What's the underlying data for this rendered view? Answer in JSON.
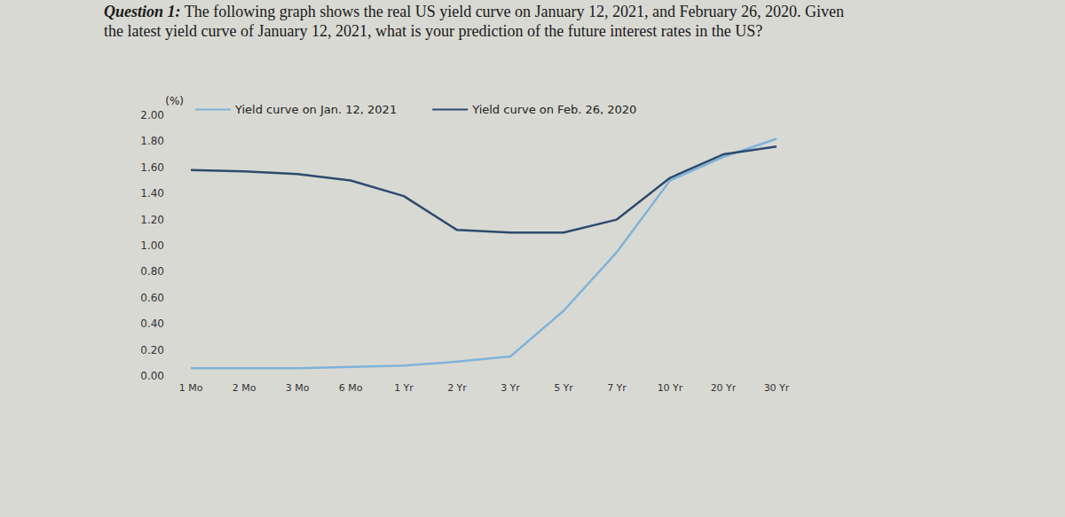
{
  "title": "Question 1: The following graph shows the real US yield curve on January 12, 2021, and February 26, 2020. Given the latest yield curve of January 12, 2021, what is your prediction of the future interest rates in the US?",
  "chart_data": {
    "type": "line",
    "y_label": "(%)",
    "categories": [
      "1 Mo",
      "2 Mo",
      "3 Mo",
      "6 Mo",
      "1 Yr",
      "2 Yr",
      "3 Yr",
      "5 Yr",
      "7 Yr",
      "10 Yr",
      "20 Yr",
      "30 Yr"
    ],
    "series": [
      {
        "name": "Yield curve on Jan. 12, 2021",
        "color": "#7fb3d9",
        "values": [
          0.06,
          0.06,
          0.06,
          0.07,
          0.08,
          0.11,
          0.15,
          0.5,
          0.95,
          1.5,
          1.68,
          1.82
        ]
      },
      {
        "name": "Yield curve on Feb. 26, 2020",
        "color": "#2e4a6e",
        "values": [
          1.58,
          1.57,
          1.55,
          1.5,
          1.38,
          1.12,
          1.1,
          1.1,
          1.2,
          1.52,
          1.7,
          1.76
        ]
      }
    ],
    "ylim": [
      0,
      2
    ],
    "yticks": [
      {
        "value": 0,
        "label": "0.00"
      },
      {
        "value": 0.2,
        "label": "0.20"
      },
      {
        "value": 0.4,
        "label": "0.40"
      },
      {
        "value": 0.6,
        "label": "0.60"
      },
      {
        "value": 0.8,
        "label": "0.80"
      },
      {
        "value": 1,
        "label": "1.00"
      },
      {
        "value": 1.2,
        "label": "1.20"
      },
      {
        "value": 1.4,
        "label": "1.40"
      },
      {
        "value": 1.6,
        "label": "1.60"
      },
      {
        "value": 1.8,
        "label": "1.80"
      },
      {
        "value": 2,
        "label": "2.00"
      }
    ],
    "grid": false,
    "legend": "top"
  }
}
